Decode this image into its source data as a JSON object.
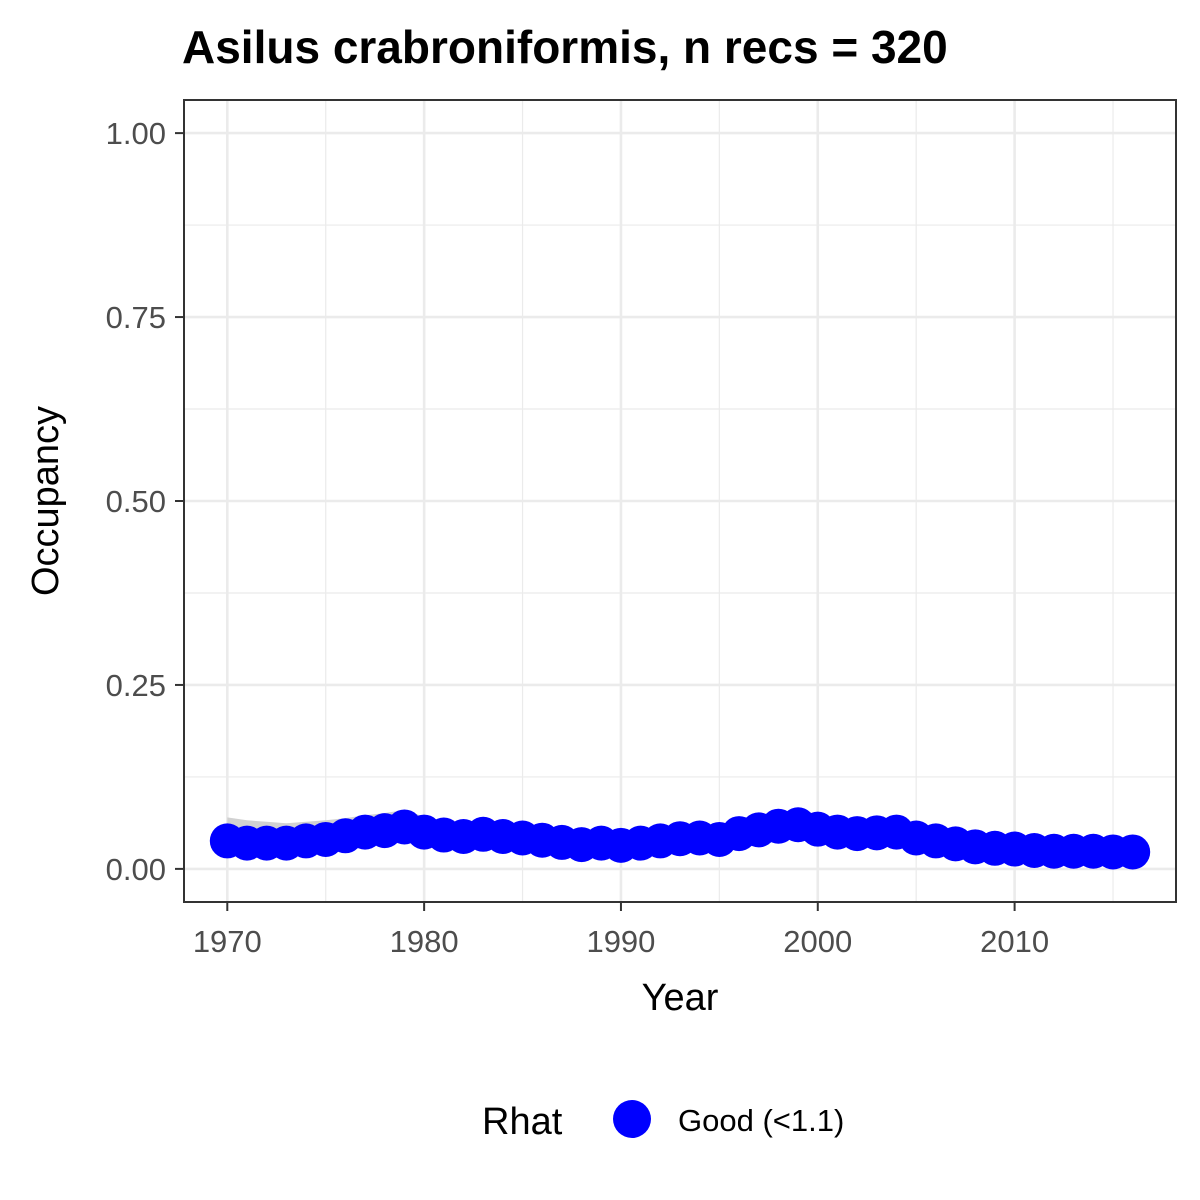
{
  "chart_data": {
    "type": "scatter",
    "title": "Asilus crabroniformis, n recs = 320",
    "xlabel": "Year",
    "ylabel": "Occupancy",
    "xlim": [
      1967.8,
      2018.2
    ],
    "ylim": [
      -0.045,
      1.045
    ],
    "x_ticks": [
      1970,
      1980,
      1990,
      2000,
      2010
    ],
    "y_ticks": [
      0,
      0.25,
      0.5,
      0.75,
      1
    ],
    "x_tick_labels": [
      "1970",
      "1980",
      "1990",
      "2000",
      "2010"
    ],
    "y_tick_labels": [
      "0.00",
      "0.25",
      "0.50",
      "0.75",
      "1.00"
    ],
    "grid": true,
    "legend": {
      "title": "Rhat",
      "position": "bottom",
      "entries": [
        "Good (<1.1)"
      ]
    },
    "colors": {
      "points": "#0000ff",
      "ribbon": "#cccccc",
      "grid": "#ebebeb",
      "panel_border": "#333333"
    },
    "series": [
      {
        "name": "Good (<1.1)",
        "x": [
          1970,
          1971,
          1972,
          1973,
          1974,
          1975,
          1976,
          1977,
          1978,
          1979,
          1980,
          1981,
          1982,
          1983,
          1984,
          1985,
          1986,
          1987,
          1988,
          1989,
          1990,
          1991,
          1992,
          1993,
          1994,
          1995,
          1996,
          1997,
          1998,
          1999,
          2000,
          2001,
          2002,
          2003,
          2004,
          2005,
          2006,
          2007,
          2008,
          2009,
          2010,
          2011,
          2012,
          2013,
          2014,
          2015,
          2016
        ],
        "y": [
          0.038,
          0.035,
          0.035,
          0.035,
          0.038,
          0.04,
          0.045,
          0.05,
          0.052,
          0.057,
          0.05,
          0.046,
          0.044,
          0.047,
          0.044,
          0.042,
          0.039,
          0.036,
          0.033,
          0.035,
          0.032,
          0.035,
          0.038,
          0.041,
          0.042,
          0.04,
          0.048,
          0.053,
          0.058,
          0.06,
          0.054,
          0.05,
          0.048,
          0.049,
          0.05,
          0.042,
          0.038,
          0.034,
          0.03,
          0.028,
          0.027,
          0.025,
          0.024,
          0.024,
          0.024,
          0.023,
          0.023
        ],
        "lower": [
          0.03,
          0.028,
          0.028,
          0.028,
          0.03,
          0.032,
          0.036,
          0.04,
          0.042,
          0.046,
          0.04,
          0.037,
          0.035,
          0.038,
          0.035,
          0.033,
          0.031,
          0.028,
          0.026,
          0.028,
          0.025,
          0.028,
          0.03,
          0.033,
          0.034,
          0.032,
          0.039,
          0.043,
          0.047,
          0.049,
          0.044,
          0.04,
          0.039,
          0.04,
          0.04,
          0.034,
          0.03,
          0.027,
          0.023,
          0.022,
          0.021,
          0.019,
          0.018,
          0.018,
          0.018,
          0.017,
          0.017
        ],
        "upper": [
          0.07,
          0.066,
          0.064,
          0.062,
          0.064,
          0.066,
          0.069,
          0.073,
          0.076,
          0.08,
          0.071,
          0.065,
          0.062,
          0.065,
          0.062,
          0.059,
          0.055,
          0.051,
          0.047,
          0.049,
          0.046,
          0.049,
          0.053,
          0.057,
          0.058,
          0.056,
          0.064,
          0.07,
          0.076,
          0.078,
          0.071,
          0.066,
          0.064,
          0.065,
          0.066,
          0.057,
          0.052,
          0.047,
          0.042,
          0.04,
          0.038,
          0.036,
          0.034,
          0.034,
          0.034,
          0.033,
          0.035
        ]
      }
    ]
  }
}
